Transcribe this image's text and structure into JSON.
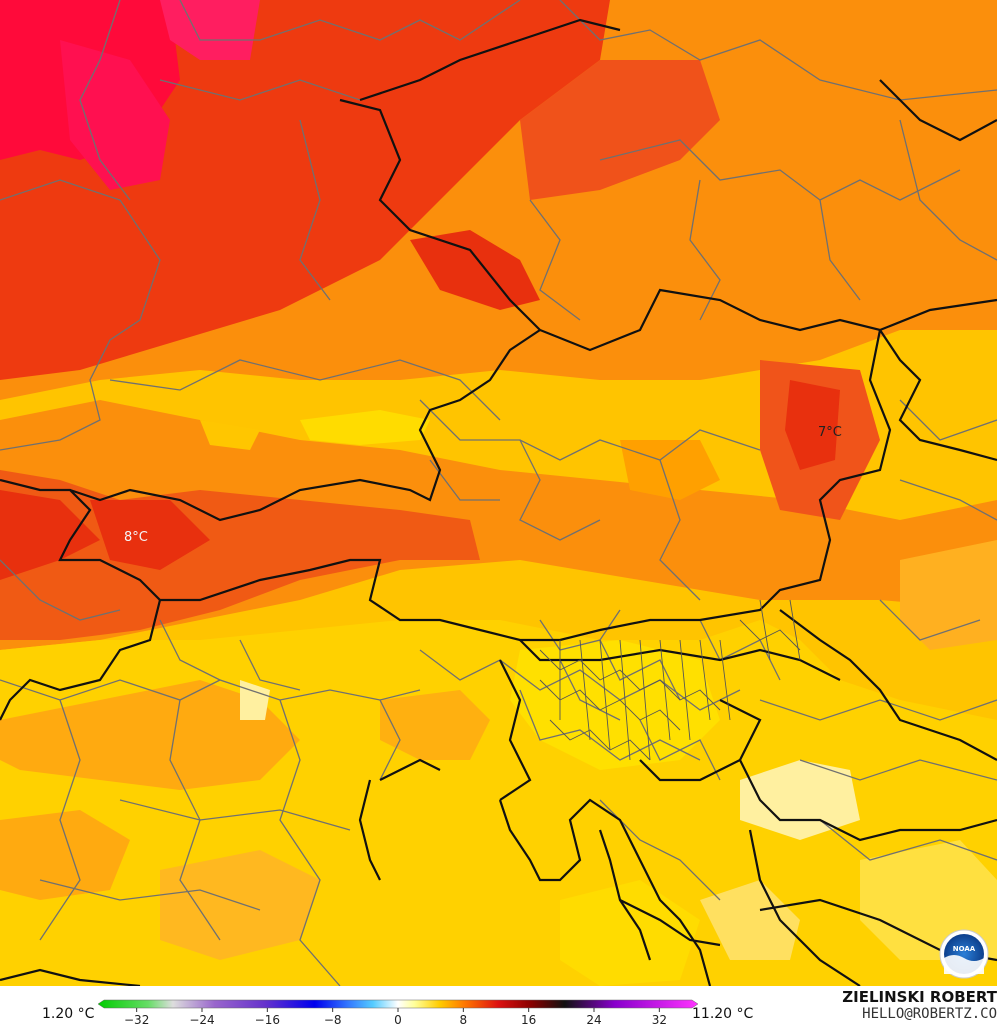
{
  "map": {
    "labels": [
      {
        "text": "7°C"
      },
      {
        "text": "8°C"
      }
    ],
    "colors": {
      "red": "#e8300e",
      "deep_red": "#f0093c",
      "orange_red": "#f65a0d",
      "orange": "#fb8f0c",
      "light_orange": "#ffae08",
      "yellow_orange": "#ffc600",
      "yellow": "#ffdc00",
      "pale_yellow": "#ffeea0",
      "border_national": "#111111",
      "border_regional": "#707070"
    },
    "logo": "noaa-logo"
  },
  "legend": {
    "min_label": "1.20 °C",
    "max_label": "11.20 °C",
    "ticks": [
      "−32",
      "−24",
      "−16",
      "−8",
      "0",
      "8",
      "16",
      "24",
      "32"
    ],
    "tick_values": [
      -32,
      -24,
      -16,
      -8,
      0,
      8,
      16,
      24,
      32
    ],
    "range": [
      -36,
      36
    ],
    "stops": [
      {
        "v": -36,
        "c": "#00cc00"
      },
      {
        "v": -30,
        "c": "#66dd66"
      },
      {
        "v": -27,
        "c": "#dddddd"
      },
      {
        "v": -22,
        "c": "#9966cc"
      },
      {
        "v": -16,
        "c": "#6633cc"
      },
      {
        "v": -10,
        "c": "#0000ee"
      },
      {
        "v": -6,
        "c": "#3377ff"
      },
      {
        "v": -3,
        "c": "#55ccff"
      },
      {
        "v": 0,
        "c": "#ffffff"
      },
      {
        "v": 2,
        "c": "#ffff99"
      },
      {
        "v": 5,
        "c": "#ffcc00"
      },
      {
        "v": 8,
        "c": "#ff7700"
      },
      {
        "v": 12,
        "c": "#dd1111"
      },
      {
        "v": 16,
        "c": "#880000"
      },
      {
        "v": 20,
        "c": "#111111"
      },
      {
        "v": 26,
        "c": "#8800cc"
      },
      {
        "v": 36,
        "c": "#ff33ff"
      }
    ]
  },
  "credit": {
    "name": "ZIELINSKI ROBERT",
    "email": "HELLO@ROBERTZ.CO"
  }
}
